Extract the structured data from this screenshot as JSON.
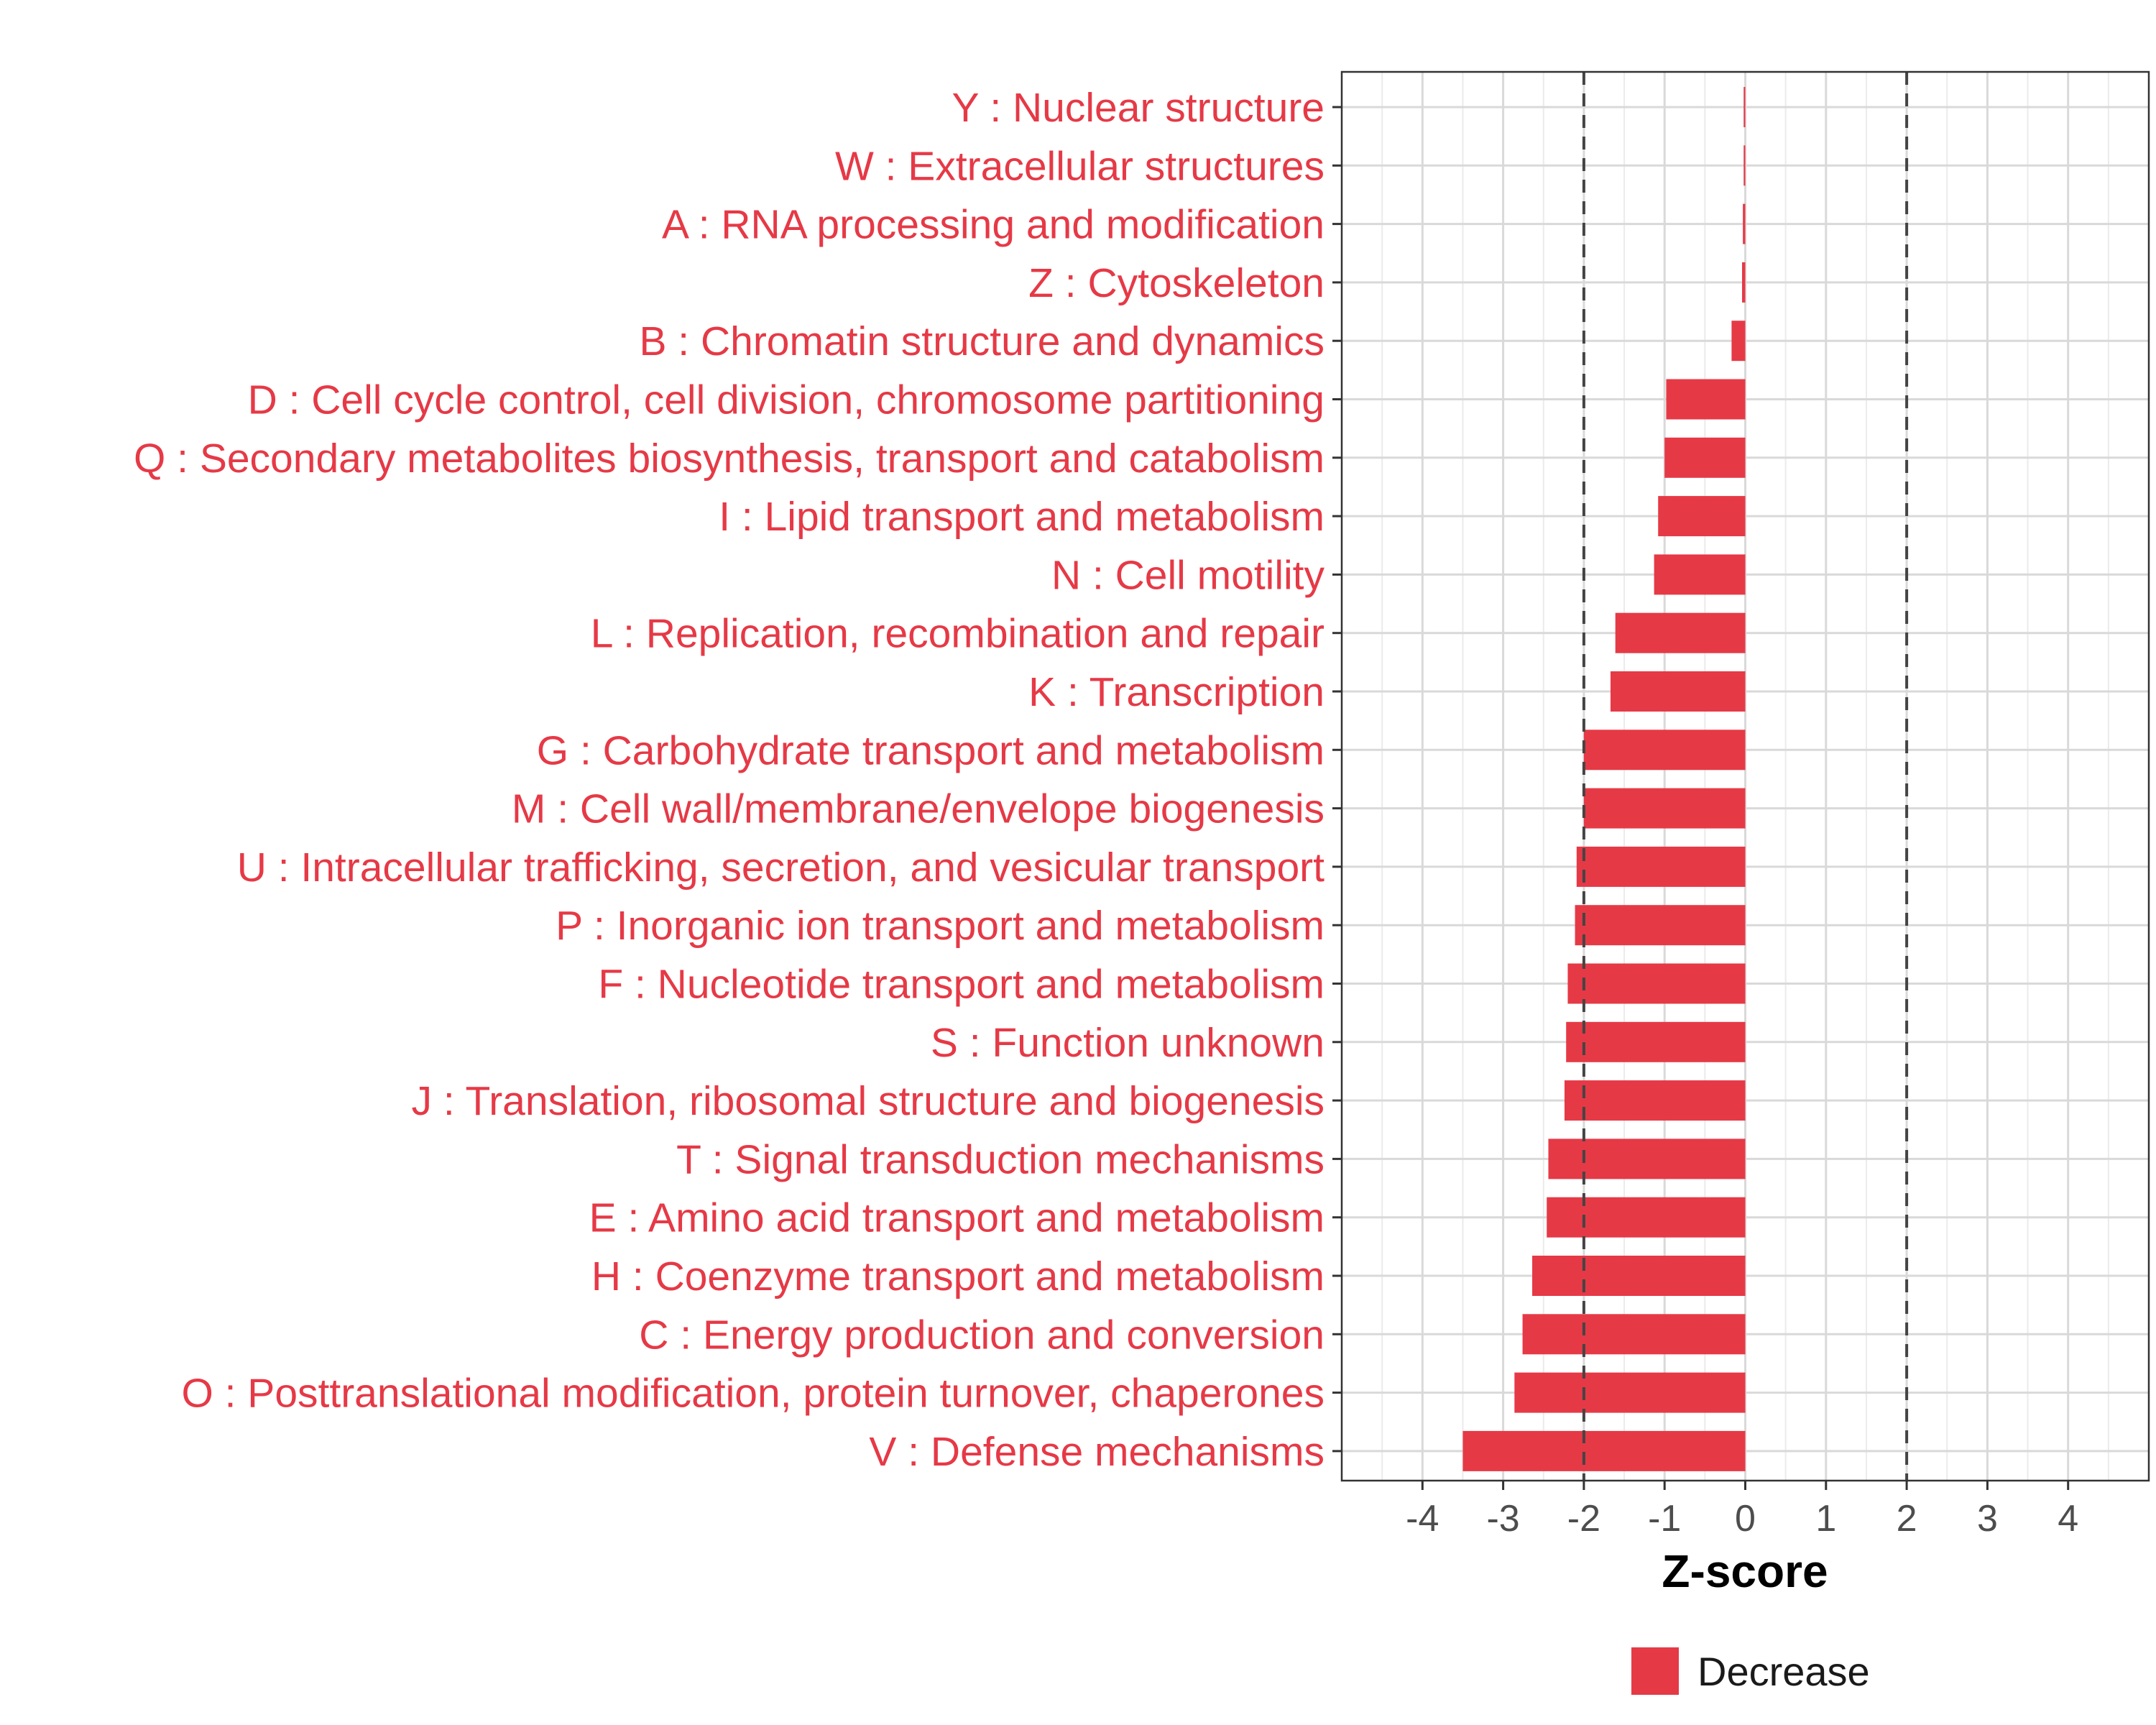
{
  "chart_data": {
    "type": "bar",
    "orientation": "horizontal",
    "categories": [
      "Y : Nuclear structure",
      "W : Extracellular structures",
      "A : RNA processing and modification",
      "Z : Cytoskeleton",
      "B : Chromatin structure and dynamics",
      "D : Cell cycle control, cell division, chromosome partitioning",
      "Q : Secondary metabolites biosynthesis, transport and catabolism",
      "I : Lipid transport and metabolism",
      "N : Cell motility",
      "L : Replication, recombination and repair",
      "K : Transcription",
      "G : Carbohydrate transport and metabolism",
      "M : Cell wall/membrane/envelope biogenesis",
      "U : Intracellular trafficking, secretion, and vesicular transport",
      "P : Inorganic ion transport and metabolism",
      "F : Nucleotide transport and metabolism",
      "S : Function unknown",
      "J : Translation, ribosomal structure and biogenesis",
      "T : Signal transduction mechanisms",
      "E : Amino acid transport and metabolism",
      "H : Coenzyme transport and metabolism",
      "C : Energy production and conversion",
      "O : Posttranslational modification, protein turnover, chaperones",
      "V : Defense mechanisms"
    ],
    "values": [
      -0.02,
      -0.02,
      -0.03,
      -0.04,
      -0.17,
      -0.98,
      -1.0,
      -1.08,
      -1.13,
      -1.61,
      -1.67,
      -2.0,
      -2.0,
      -2.09,
      -2.11,
      -2.2,
      -2.22,
      -2.24,
      -2.44,
      -2.46,
      -2.64,
      -2.76,
      -2.86,
      -3.5
    ],
    "xlabel": "Z-score",
    "ylabel": "",
    "xlim": [
      -5,
      5
    ],
    "x_ticks": [
      -4,
      -3,
      -2,
      -1,
      0,
      1,
      2,
      3,
      4
    ],
    "thresholds": [
      -2,
      2
    ],
    "grid": true,
    "bar_color": "#e63946",
    "label_color": "#e63946",
    "legend": {
      "position": "bottom",
      "entries": [
        {
          "label": "Decrease",
          "color": "#e63946"
        }
      ]
    }
  }
}
